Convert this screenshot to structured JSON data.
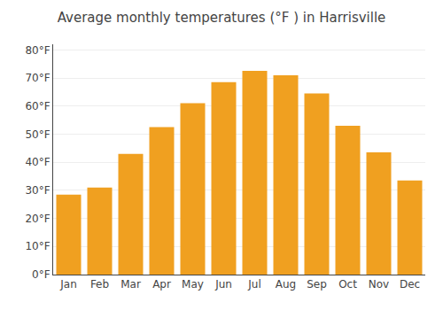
{
  "chart_data": {
    "type": "bar",
    "title": "Average monthly temperatures (°F ) in Harrisville",
    "categories": [
      "Jan",
      "Feb",
      "Mar",
      "Apr",
      "May",
      "Jun",
      "Jul",
      "Aug",
      "Sep",
      "Oct",
      "Nov",
      "Dec"
    ],
    "values": [
      28.5,
      31.0,
      43.0,
      52.5,
      61.0,
      68.5,
      72.5,
      71.0,
      64.5,
      53.0,
      43.5,
      33.5
    ],
    "color": "#F0A020",
    "ylim": [
      0,
      82
    ],
    "yticks": [
      {
        "value": 0,
        "label": "0°F"
      },
      {
        "value": 10,
        "label": "10°F"
      },
      {
        "value": 20,
        "label": "20°F"
      },
      {
        "value": 30,
        "label": "30°F"
      },
      {
        "value": 40,
        "label": "40°F"
      },
      {
        "value": 50,
        "label": "50°F"
      },
      {
        "value": 60,
        "label": "60°F"
      },
      {
        "value": 70,
        "label": "70°F"
      },
      {
        "value": 80,
        "label": "80°F"
      }
    ],
    "grid": true
  }
}
